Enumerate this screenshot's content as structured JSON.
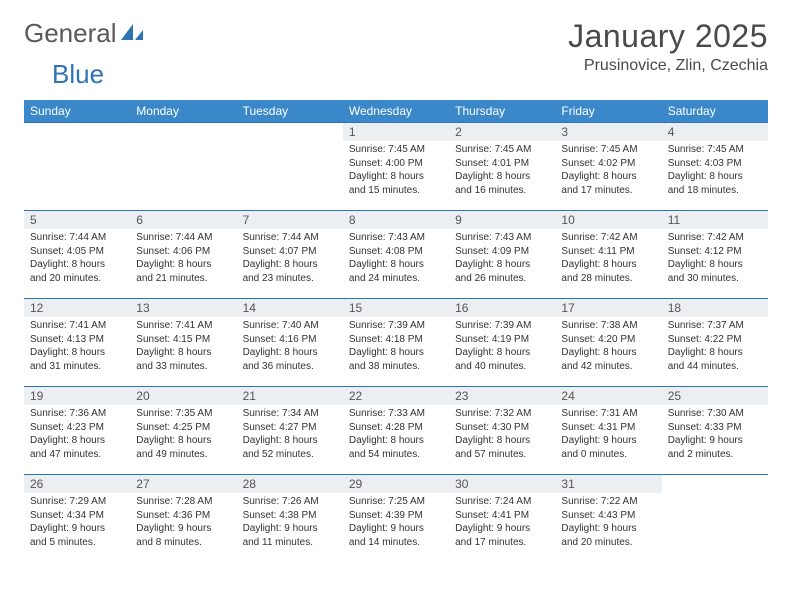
{
  "brand": {
    "word1": "General",
    "word2": "Blue"
  },
  "title": "January 2025",
  "location": "Prusinovice, Zlin, Czechia",
  "colors": {
    "header_bg": "#3a88c9",
    "border": "#2e74b5",
    "daynum_bg": "#eceff2",
    "text": "#333333",
    "title_text": "#4a4a4a"
  },
  "weekdays": [
    "Sunday",
    "Monday",
    "Tuesday",
    "Wednesday",
    "Thursday",
    "Friday",
    "Saturday"
  ],
  "leading_blanks": 3,
  "days": [
    {
      "n": "1",
      "sr": "7:45 AM",
      "ss": "4:00 PM",
      "dl": "8 hours and 15 minutes."
    },
    {
      "n": "2",
      "sr": "7:45 AM",
      "ss": "4:01 PM",
      "dl": "8 hours and 16 minutes."
    },
    {
      "n": "3",
      "sr": "7:45 AM",
      "ss": "4:02 PM",
      "dl": "8 hours and 17 minutes."
    },
    {
      "n": "4",
      "sr": "7:45 AM",
      "ss": "4:03 PM",
      "dl": "8 hours and 18 minutes."
    },
    {
      "n": "5",
      "sr": "7:44 AM",
      "ss": "4:05 PM",
      "dl": "8 hours and 20 minutes."
    },
    {
      "n": "6",
      "sr": "7:44 AM",
      "ss": "4:06 PM",
      "dl": "8 hours and 21 minutes."
    },
    {
      "n": "7",
      "sr": "7:44 AM",
      "ss": "4:07 PM",
      "dl": "8 hours and 23 minutes."
    },
    {
      "n": "8",
      "sr": "7:43 AM",
      "ss": "4:08 PM",
      "dl": "8 hours and 24 minutes."
    },
    {
      "n": "9",
      "sr": "7:43 AM",
      "ss": "4:09 PM",
      "dl": "8 hours and 26 minutes."
    },
    {
      "n": "10",
      "sr": "7:42 AM",
      "ss": "4:11 PM",
      "dl": "8 hours and 28 minutes."
    },
    {
      "n": "11",
      "sr": "7:42 AM",
      "ss": "4:12 PM",
      "dl": "8 hours and 30 minutes."
    },
    {
      "n": "12",
      "sr": "7:41 AM",
      "ss": "4:13 PM",
      "dl": "8 hours and 31 minutes."
    },
    {
      "n": "13",
      "sr": "7:41 AM",
      "ss": "4:15 PM",
      "dl": "8 hours and 33 minutes."
    },
    {
      "n": "14",
      "sr": "7:40 AM",
      "ss": "4:16 PM",
      "dl": "8 hours and 36 minutes."
    },
    {
      "n": "15",
      "sr": "7:39 AM",
      "ss": "4:18 PM",
      "dl": "8 hours and 38 minutes."
    },
    {
      "n": "16",
      "sr": "7:39 AM",
      "ss": "4:19 PM",
      "dl": "8 hours and 40 minutes."
    },
    {
      "n": "17",
      "sr": "7:38 AM",
      "ss": "4:20 PM",
      "dl": "8 hours and 42 minutes."
    },
    {
      "n": "18",
      "sr": "7:37 AM",
      "ss": "4:22 PM",
      "dl": "8 hours and 44 minutes."
    },
    {
      "n": "19",
      "sr": "7:36 AM",
      "ss": "4:23 PM",
      "dl": "8 hours and 47 minutes."
    },
    {
      "n": "20",
      "sr": "7:35 AM",
      "ss": "4:25 PM",
      "dl": "8 hours and 49 minutes."
    },
    {
      "n": "21",
      "sr": "7:34 AM",
      "ss": "4:27 PM",
      "dl": "8 hours and 52 minutes."
    },
    {
      "n": "22",
      "sr": "7:33 AM",
      "ss": "4:28 PM",
      "dl": "8 hours and 54 minutes."
    },
    {
      "n": "23",
      "sr": "7:32 AM",
      "ss": "4:30 PM",
      "dl": "8 hours and 57 minutes."
    },
    {
      "n": "24",
      "sr": "7:31 AM",
      "ss": "4:31 PM",
      "dl": "9 hours and 0 minutes."
    },
    {
      "n": "25",
      "sr": "7:30 AM",
      "ss": "4:33 PM",
      "dl": "9 hours and 2 minutes."
    },
    {
      "n": "26",
      "sr": "7:29 AM",
      "ss": "4:34 PM",
      "dl": "9 hours and 5 minutes."
    },
    {
      "n": "27",
      "sr": "7:28 AM",
      "ss": "4:36 PM",
      "dl": "9 hours and 8 minutes."
    },
    {
      "n": "28",
      "sr": "7:26 AM",
      "ss": "4:38 PM",
      "dl": "9 hours and 11 minutes."
    },
    {
      "n": "29",
      "sr": "7:25 AM",
      "ss": "4:39 PM",
      "dl": "9 hours and 14 minutes."
    },
    {
      "n": "30",
      "sr": "7:24 AM",
      "ss": "4:41 PM",
      "dl": "9 hours and 17 minutes."
    },
    {
      "n": "31",
      "sr": "7:22 AM",
      "ss": "4:43 PM",
      "dl": "9 hours and 20 minutes."
    }
  ],
  "labels": {
    "sunrise": "Sunrise:",
    "sunset": "Sunset:",
    "daylight": "Daylight:"
  }
}
